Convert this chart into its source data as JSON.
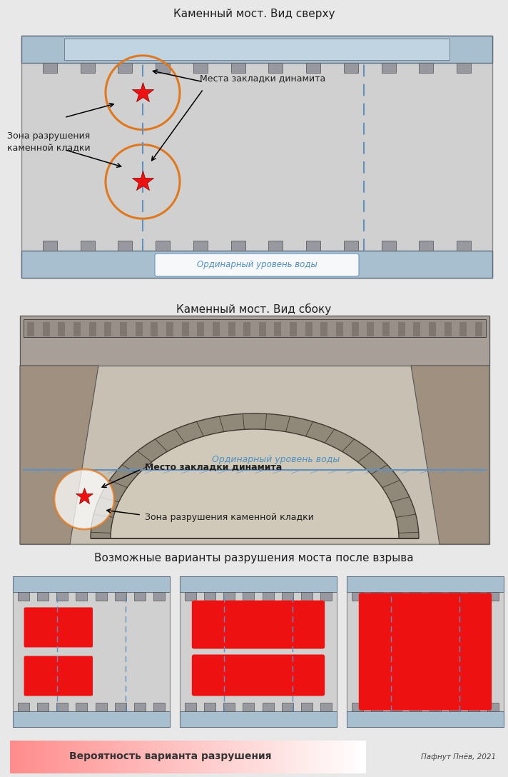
{
  "title_top": "Каменный мост. Вид сверху",
  "title_mid": "Каменный мост. Вид сбоку",
  "title_bot": "Возможные варианты разрушения моста после взрыва",
  "label_zone": "Зона разрушения\nкаменной кладки",
  "label_places": "Места закладки динамита",
  "label_water_top": "Ординарный уровень воды",
  "label_water_side": "Ординарный уровень воды",
  "label_place_side": "Место закладки динамита",
  "label_zone_side": "Зона разрушения каменной кладки",
  "label_probability": "Вероятность варианта разрушения",
  "bg_color": "#e8e8e8",
  "road_color": "#d0d0d0",
  "bridge_blue": "#a8bfcf",
  "bridge_blue_light": "#c0d4e2",
  "railing_color": "#9898a0",
  "orange_color": "#e07820",
  "red_color": "#ee1111",
  "dashed_color": "#6090c0",
  "water_text_color": "#5090c0",
  "text_color": "#202020",
  "photo_bg": "#c0b8a8",
  "photo_light": "#d8d0c0",
  "arch_dark": "#504840",
  "pier_color": "#a89880"
}
